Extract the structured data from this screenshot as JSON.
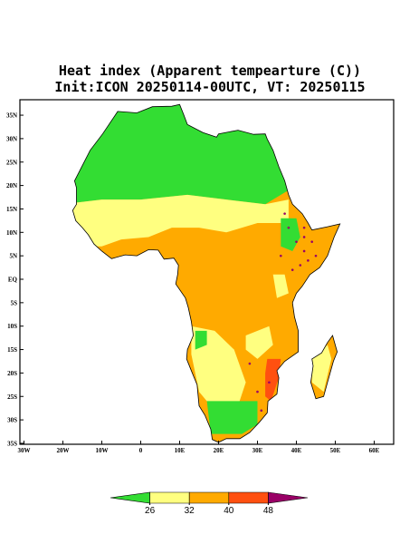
{
  "map_data": {
    "title": "Heat index (Apparent tempearture (C))",
    "subtitle": "Init:ICON 20250114-00UTC, VT: 20250115",
    "lon_ticks": [
      {
        "value": -30,
        "label": "30W"
      },
      {
        "value": -20,
        "label": "20W"
      },
      {
        "value": -10,
        "label": "10W"
      },
      0,
      {
        "value": 10,
        "label": "10E"
      },
      {
        "value": 20,
        "label": "20E"
      },
      {
        "value": 30,
        "label": "30E"
      },
      {
        "value": 40,
        "label": "40E"
      },
      {
        "value": 50,
        "label": "50E"
      },
      {
        "value": 60,
        "label": "60E"
      }
    ],
    "lat_ticks": [
      {
        "value": 35,
        "label": "35N"
      },
      {
        "value": 30,
        "label": "30N"
      },
      {
        "value": 25,
        "label": "25N"
      },
      {
        "value": 20,
        "label": "20N"
      },
      {
        "value": 15,
        "label": "15N"
      },
      {
        "value": 10,
        "label": "10N"
      },
      {
        "value": 5,
        "label": "5N"
      },
      {
        "value": 0,
        "label": "EQ"
      },
      {
        "value": -5,
        "label": "5S"
      },
      {
        "value": -10,
        "label": "10S"
      },
      {
        "value": -15,
        "label": "15S"
      },
      {
        "value": -20,
        "label": "20S"
      },
      {
        "value": -25,
        "label": "25S"
      },
      {
        "value": -30,
        "label": "30S"
      },
      {
        "value": -35,
        "label": "35S"
      }
    ],
    "colorbar": {
      "levels": [
        26,
        32,
        40,
        48
      ],
      "colors": [
        "#33dd33",
        "#ffff80",
        "#ffaa00",
        "#ff5010",
        "#990066"
      ]
    }
  }
}
